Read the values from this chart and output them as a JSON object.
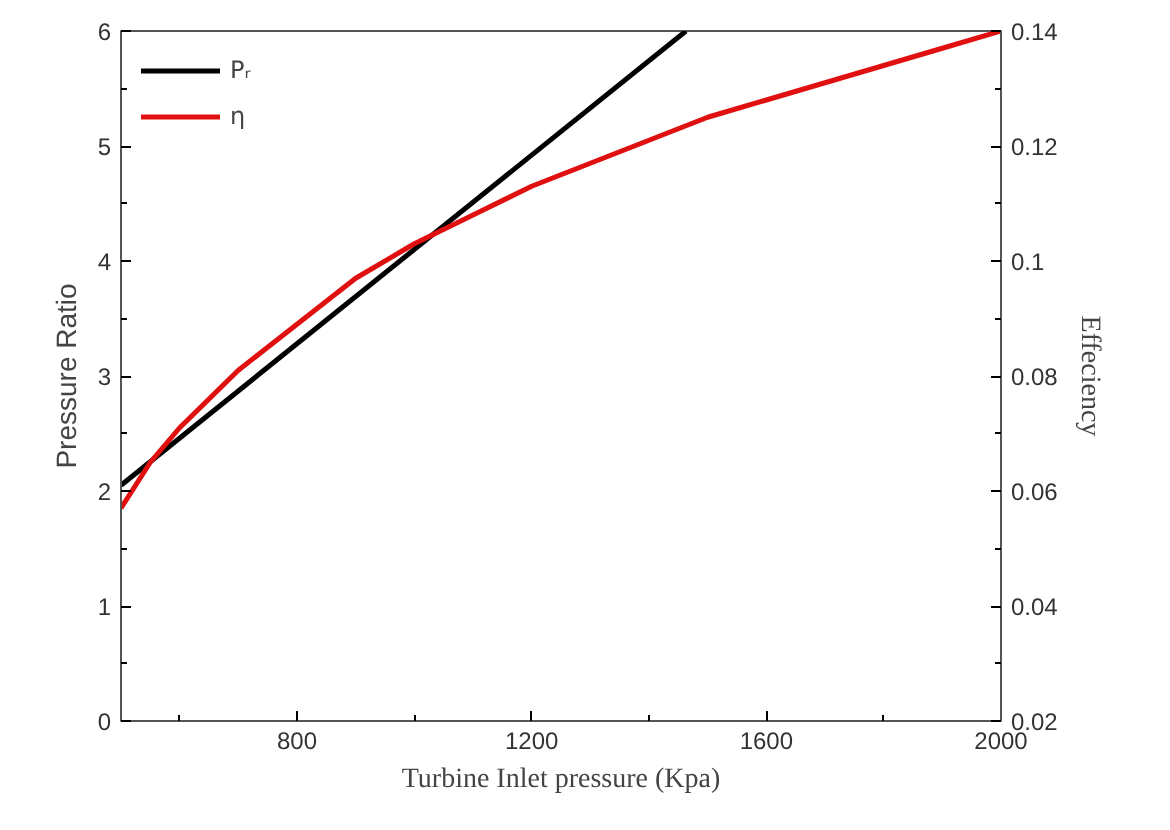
{
  "chart_data": {
    "type": "line",
    "xlabel": "Turbine Inlet pressure (Kpa)",
    "ylabel": "Pressure Ratio",
    "y2label": "Effeciency",
    "xlim": [
      500,
      2000
    ],
    "xticks": [
      800,
      1200,
      1600,
      2000
    ],
    "ylim": [
      0,
      6
    ],
    "yticks": [
      0,
      1,
      2,
      3,
      4,
      5,
      6
    ],
    "y2lim": [
      0.02,
      0.14
    ],
    "y2ticks": [
      0.02,
      0.04,
      0.06,
      0.08,
      0.1,
      0.12,
      0.14
    ],
    "grid": false,
    "legend": "top left",
    "line_style": "solid",
    "marker": "none",
    "series": [
      {
        "name": "Pᵣ",
        "color": "#000000",
        "x": [
          500,
          1463
        ],
        "values": [
          2.05,
          6.0
        ]
      },
      {
        "name": "η",
        "color": "#e01010",
        "axis": "y2",
        "x": [
          500,
          550,
          600,
          700,
          800,
          900,
          1000,
          1100,
          1200,
          1300,
          1400,
          1500,
          1600,
          1700,
          1800,
          1900,
          2000
        ],
        "values": [
          0.057,
          0.065,
          0.071,
          0.081,
          0.089,
          0.097,
          0.103,
          0.108,
          0.113,
          0.117,
          0.121,
          0.125,
          0.128,
          0.131,
          0.134,
          0.137,
          0.14
        ]
      }
    ]
  }
}
